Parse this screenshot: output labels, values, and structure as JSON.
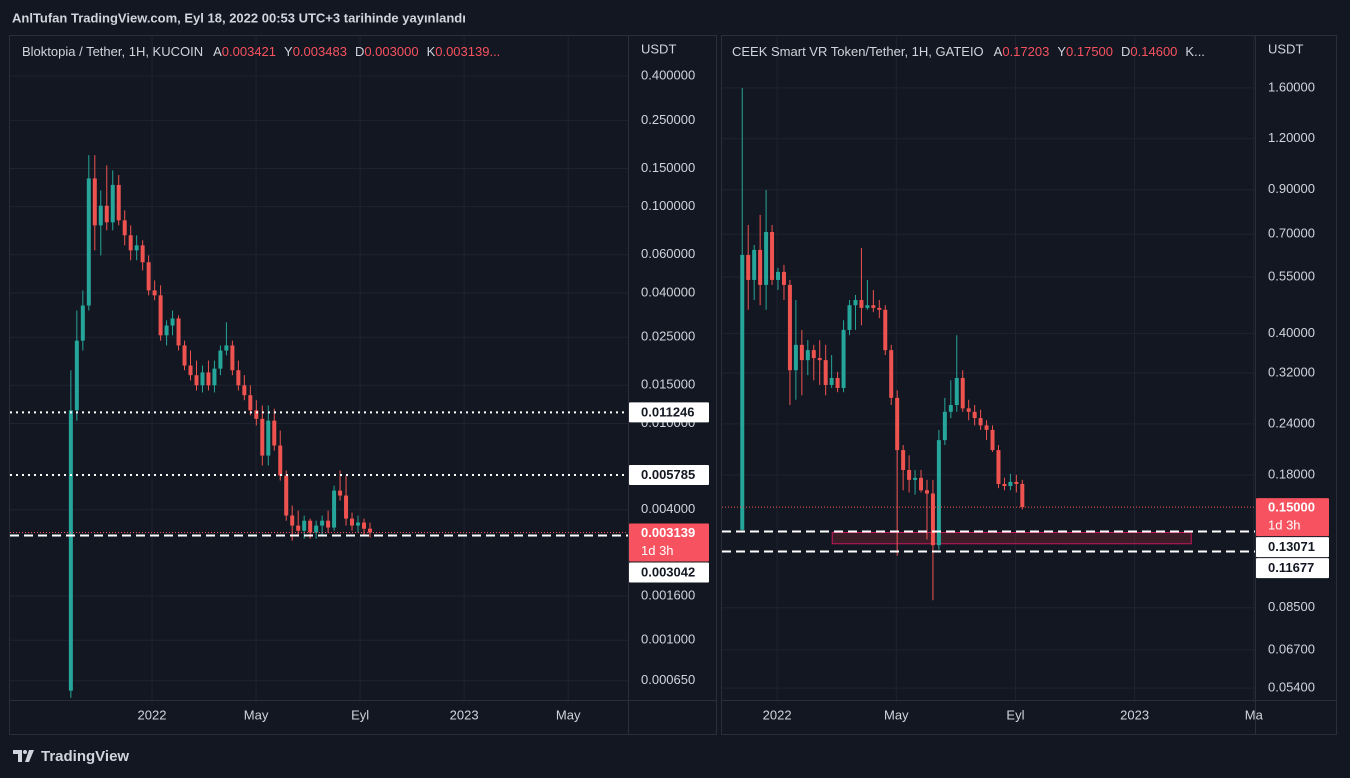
{
  "header": "AnlTufan TradingView.com, Eyl 18, 2022 00:53 UTC+3 tarihinde yayınlandı",
  "footer": "TradingView",
  "chart_data": [
    {
      "type": "candlestick",
      "title": "Bloktopia / Tether, 1H, KUCOIN",
      "ohlc": [
        {
          "key": "A",
          "value": 0.003421
        },
        {
          "key": "Y",
          "value": 0.003483
        },
        {
          "key": "D",
          "value": 0.003,
          "label": "0.003000"
        },
        {
          "key": "K",
          "value": 0.003139,
          "label": "0.003139..."
        }
      ],
      "unit": "USDT",
      "countdown": "1d 3h",
      "log_scale": true,
      "grid": true,
      "up_color": "#26a69a",
      "down_color": "#ef5350",
      "last_price": 0.003139,
      "price_lines": [
        {
          "price": 0.011246,
          "style": "dotted"
        },
        {
          "price": 0.005785,
          "style": "dotted"
        },
        {
          "price": 0.003042,
          "style": "dashed"
        }
      ],
      "xlim": [
        -5.46,
        18.3
      ],
      "xticks": [
        {
          "value": 0,
          "label": "2022"
        },
        {
          "value": 4,
          "label": "May"
        },
        {
          "value": 8,
          "label": "Eyl"
        },
        {
          "value": 12,
          "label": "2023"
        },
        {
          "value": 16,
          "label": "May"
        }
      ],
      "ylim": [
        0.00053,
        0.6
      ],
      "yticks": [
        {
          "value": 0.4,
          "label": "0.400000"
        },
        {
          "value": 0.25,
          "label": "0.250000"
        },
        {
          "value": 0.15,
          "label": "0.150000"
        },
        {
          "value": 0.1,
          "label": "0.100000"
        },
        {
          "value": 0.06,
          "label": "0.060000"
        },
        {
          "value": 0.04,
          "label": "0.040000"
        },
        {
          "value": 0.025,
          "label": "0.025000"
        },
        {
          "value": 0.015,
          "label": "0.015000"
        },
        {
          "value": 0.01,
          "label": "0.010000"
        },
        {
          "value": 0.004,
          "label": "0.004000"
        },
        {
          "value": 0.0016,
          "label": "0.001600"
        },
        {
          "value": 0.001,
          "label": "0.001000"
        },
        {
          "value": 0.00065,
          "label": "0.000650"
        }
      ],
      "x": [
        -3.12,
        -2.89,
        -2.66,
        -2.43,
        -2.2,
        -1.97,
        -1.74,
        -1.51,
        -1.28,
        -1.05,
        -0.82,
        -0.59,
        -0.36,
        -0.13,
        0.1,
        0.33,
        0.56,
        0.79,
        1.02,
        1.25,
        1.48,
        1.71,
        1.94,
        2.17,
        2.4,
        2.63,
        2.86,
        3.09,
        3.32,
        3.55,
        3.78,
        4.01,
        4.24,
        4.47,
        4.7,
        4.93,
        5.16,
        5.39,
        5.62,
        5.85,
        6.08,
        6.31,
        6.54,
        6.77,
        7.0,
        7.23,
        7.46,
        7.69,
        7.92,
        8.15,
        8.38
      ],
      "open": [
        0.000585,
        0.0115,
        0.0241,
        0.035,
        0.135,
        0.082,
        0.101,
        0.0847,
        0.126,
        0.0865,
        0.0738,
        0.0629,
        0.0663,
        0.0554,
        0.0411,
        0.039,
        0.0255,
        0.0283,
        0.0305,
        0.0229,
        0.0185,
        0.0167,
        0.015,
        0.0172,
        0.015,
        0.0179,
        0.0217,
        0.0229,
        0.0176,
        0.015,
        0.0135,
        0.0115,
        0.0105,
        0.00711,
        0.0103,
        0.00791,
        0.00575,
        0.00376,
        0.00338,
        0.0032,
        0.00356,
        0.00314,
        0.00338,
        0.00356,
        0.00331,
        0.0049,
        0.00465,
        0.00364,
        0.00338,
        0.00349,
        0.00327
      ],
      "high": [
        0.0176,
        0.0332,
        0.0411,
        0.173,
        0.173,
        0.119,
        0.155,
        0.147,
        0.14,
        0.0962,
        0.082,
        0.0738,
        0.07,
        0.0596,
        0.0457,
        0.0434,
        0.0299,
        0.0332,
        0.0315,
        0.0241,
        0.0217,
        0.0195,
        0.0185,
        0.0195,
        0.0195,
        0.0229,
        0.0293,
        0.0241,
        0.0195,
        0.0167,
        0.015,
        0.0128,
        0.0121,
        0.0121,
        0.0117,
        0.00928,
        0.00607,
        0.00418,
        0.00396,
        0.00376,
        0.00364,
        0.00356,
        0.00376,
        0.00396,
        0.00517,
        0.00607,
        0.00575,
        0.00388,
        0.00376,
        0.00364,
        0.00349
      ],
      "low": [
        0.000543,
        0.0103,
        0.0217,
        0.0332,
        0.0629,
        0.0596,
        0.0778,
        0.0778,
        0.082,
        0.0663,
        0.0566,
        0.0566,
        0.0508,
        0.039,
        0.037,
        0.0241,
        0.0229,
        0.0255,
        0.0217,
        0.0176,
        0.0158,
        0.0142,
        0.0139,
        0.0142,
        0.0139,
        0.0167,
        0.0206,
        0.0167,
        0.0142,
        0.0128,
        0.0109,
        0.00979,
        0.0064,
        0.0064,
        0.0075,
        0.00545,
        0.00356,
        0.00288,
        0.00304,
        0.00294,
        0.00294,
        0.00294,
        0.00304,
        0.00314,
        0.0032,
        0.00441,
        0.00338,
        0.0032,
        0.00314,
        0.00301,
        0.00298
      ],
      "close": [
        0.0115,
        0.0241,
        0.035,
        0.135,
        0.082,
        0.101,
        0.0847,
        0.126,
        0.0865,
        0.0738,
        0.0629,
        0.0663,
        0.0554,
        0.0411,
        0.039,
        0.0255,
        0.0283,
        0.0305,
        0.0229,
        0.0185,
        0.0167,
        0.015,
        0.0172,
        0.015,
        0.0179,
        0.0217,
        0.0229,
        0.0176,
        0.015,
        0.0135,
        0.0115,
        0.0105,
        0.00711,
        0.0103,
        0.00791,
        0.00575,
        0.00376,
        0.00338,
        0.0032,
        0.00356,
        0.00314,
        0.00338,
        0.00356,
        0.00331,
        0.0049,
        0.00465,
        0.00364,
        0.00338,
        0.00349,
        0.00327,
        0.003139
      ]
    },
    {
      "type": "candlestick",
      "title": "CEEK Smart VR Token/Tether, 1H, GATEIO",
      "ohlc": [
        {
          "key": "A",
          "value": 0.17203
        },
        {
          "key": "Y",
          "value": 0.175,
          "label": "0.17500"
        },
        {
          "key": "D",
          "value": 0.146,
          "label": "0.14600"
        },
        {
          "key": "K..."
        }
      ],
      "unit": "USDT",
      "countdown": "1d 3h",
      "log_scale": true,
      "grid": true,
      "up_color": "#26a69a",
      "down_color": "#ef5350",
      "last_price": {
        "value": 0.15,
        "label": "0.15000"
      },
      "price_lines": [
        {
          "price": 0.13071,
          "style": "dashed"
        },
        {
          "price": 0.11677,
          "style": "dashed"
        }
      ],
      "zone": {
        "x": [
          1.85,
          13.9
        ],
        "y": [
          0.122,
          0.13
        ]
      },
      "xlim": [
        -1.85,
        16.04
      ],
      "xticks": [
        {
          "value": 0,
          "label": "2022"
        },
        {
          "value": 4,
          "label": "May"
        },
        {
          "value": 8,
          "label": "Eyl"
        },
        {
          "value": 12,
          "label": "2023"
        },
        {
          "value": 16,
          "label": "Ma"
        }
      ],
      "ylim": [
        0.0505,
        2.12
      ],
      "yticks": [
        {
          "value": 1.6,
          "label": "1.60000"
        },
        {
          "value": 1.2,
          "label": "1.20000"
        },
        {
          "value": 0.9,
          "label": "0.90000"
        },
        {
          "value": 0.7,
          "label": "0.70000"
        },
        {
          "value": 0.55,
          "label": "0.55000"
        },
        {
          "value": 0.4,
          "label": "0.40000"
        },
        {
          "value": 0.32,
          "label": "0.32000"
        },
        {
          "value": 0.24,
          "label": "0.24000"
        },
        {
          "value": 0.18,
          "label": "0.18000"
        },
        {
          "value": 0.085,
          "label": "0.08500"
        },
        {
          "value": 0.067,
          "label": "0.06700"
        },
        {
          "value": 0.054,
          "label": "0.05400"
        }
      ],
      "x": [
        -1.17,
        -0.97,
        -0.77,
        -0.57,
        -0.37,
        -0.17,
        0.03,
        0.23,
        0.43,
        0.63,
        0.83,
        1.03,
        1.23,
        1.43,
        1.63,
        1.83,
        2.03,
        2.23,
        2.43,
        2.63,
        2.83,
        3.03,
        3.23,
        3.43,
        3.63,
        3.83,
        4.03,
        4.23,
        4.43,
        4.63,
        4.83,
        5.03,
        5.23,
        5.43,
        5.63,
        5.83,
        6.03,
        6.23,
        6.43,
        6.63,
        6.83,
        7.03,
        7.23,
        7.43,
        7.63,
        7.83,
        8.03,
        8.23
      ],
      "open": [
        0.132,
        0.623,
        0.541,
        0.641,
        0.526,
        0.709,
        0.541,
        0.566,
        0.526,
        0.325,
        0.375,
        0.344,
        0.364,
        0.348,
        0.344,
        0.299,
        0.311,
        0.294,
        0.408,
        0.469,
        0.483,
        0.462,
        0.469,
        0.462,
        0.457,
        0.364,
        0.278,
        0.207,
        0.185,
        0.175,
        0.177,
        0.165,
        0.162,
        0.121,
        0.219,
        0.257,
        0.267,
        0.311,
        0.262,
        0.257,
        0.248,
        0.238,
        0.232,
        0.207,
        0.171,
        0.169,
        0.173,
        0.171
      ],
      "high": [
        1.6,
        0.738,
        0.659,
        0.781,
        0.899,
        0.738,
        0.579,
        0.589,
        0.541,
        0.483,
        0.408,
        0.385,
        0.375,
        0.385,
        0.375,
        0.354,
        0.322,
        0.431,
        0.483,
        0.497,
        0.648,
        0.541,
        0.511,
        0.483,
        0.469,
        0.375,
        0.29,
        0.213,
        0.201,
        0.185,
        0.185,
        0.175,
        0.175,
        0.232,
        0.278,
        0.307,
        0.396,
        0.325,
        0.275,
        0.267,
        0.26,
        0.245,
        0.238,
        0.213,
        0.177,
        0.181,
        0.18,
        0.175
      ],
      "low": [
        0.13,
        0.457,
        0.483,
        0.469,
        0.457,
        0.526,
        0.511,
        0.483,
        0.267,
        0.275,
        0.282,
        0.316,
        0.307,
        0.299,
        0.282,
        0.294,
        0.287,
        0.287,
        0.396,
        0.408,
        0.419,
        0.457,
        0.451,
        0.436,
        0.354,
        0.267,
        0.114,
        0.165,
        0.163,
        0.161,
        0.163,
        0.125,
        0.0887,
        0.118,
        0.213,
        0.248,
        0.257,
        0.257,
        0.245,
        0.238,
        0.232,
        0.219,
        0.205,
        0.167,
        0.165,
        0.165,
        0.163,
        0.148
      ],
      "close": [
        0.623,
        0.541,
        0.641,
        0.526,
        0.709,
        0.541,
        0.566,
        0.526,
        0.325,
        0.375,
        0.344,
        0.364,
        0.348,
        0.344,
        0.299,
        0.311,
        0.294,
        0.408,
        0.469,
        0.483,
        0.462,
        0.469,
        0.462,
        0.457,
        0.364,
        0.278,
        0.207,
        0.185,
        0.175,
        0.177,
        0.165,
        0.162,
        0.121,
        0.219,
        0.257,
        0.267,
        0.311,
        0.262,
        0.257,
        0.248,
        0.238,
        0.232,
        0.207,
        0.171,
        0.169,
        0.173,
        0.171,
        0.15
      ]
    }
  ]
}
